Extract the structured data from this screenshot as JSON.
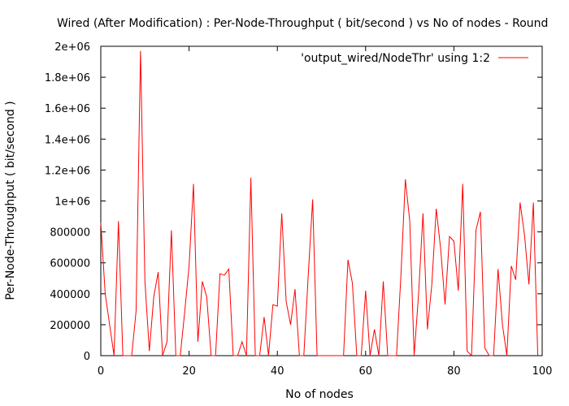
{
  "chart_data": {
    "type": "line",
    "title": "Wired (After Modification) : Per-Node-Throughput ( bit/second ) vs No of nodes - Round",
    "xlabel": "No of nodes",
    "ylabel": "Per-Node-Throughput ( bit/second )",
    "xlim": [
      0,
      100
    ],
    "ylim": [
      0,
      2000000
    ],
    "xticks": [
      0,
      20,
      40,
      60,
      80,
      100
    ],
    "xtick_labels": [
      "0",
      "20",
      "40",
      "60",
      "80",
      "100"
    ],
    "yticks": [
      0,
      200000,
      400000,
      600000,
      800000,
      1000000,
      1200000,
      1400000,
      1600000,
      1800000,
      2000000
    ],
    "ytick_labels": [
      "0",
      "200000",
      "400000",
      "600000",
      "800000",
      "1e+06",
      "1.2e+06",
      "1.4e+06",
      "1.6e+06",
      "1.8e+06",
      "2e+06"
    ],
    "grid": false,
    "legend_position": "top-right",
    "series": [
      {
        "name": "'output_wired/NodeThr' using 1:2",
        "color": "#ff0000",
        "x": [
          0,
          1,
          2,
          3,
          4,
          5,
          6,
          7,
          8,
          9,
          10,
          11,
          12,
          13,
          14,
          15,
          16,
          17,
          18,
          19,
          20,
          21,
          22,
          23,
          24,
          25,
          26,
          27,
          28,
          29,
          30,
          31,
          32,
          33,
          34,
          35,
          36,
          37,
          38,
          39,
          40,
          41,
          42,
          43,
          44,
          45,
          46,
          47,
          48,
          49,
          50,
          51,
          52,
          53,
          54,
          55,
          56,
          57,
          58,
          59,
          60,
          61,
          62,
          63,
          64,
          65,
          66,
          67,
          68,
          69,
          70,
          71,
          72,
          73,
          74,
          75,
          76,
          77,
          78,
          79,
          80,
          81,
          82,
          83,
          84,
          85,
          86,
          87,
          88,
          89,
          90,
          91,
          92,
          93,
          94,
          95,
          96,
          97,
          98,
          99
        ],
        "y": [
          860000,
          400000,
          200000,
          0,
          870000,
          0,
          0,
          0,
          290000,
          1970000,
          480000,
          30000,
          380000,
          540000,
          0,
          90000,
          810000,
          0,
          0,
          280000,
          580000,
          1110000,
          90000,
          480000,
          380000,
          0,
          0,
          530000,
          520000,
          560000,
          0,
          0,
          90000,
          0,
          1150000,
          0,
          0,
          250000,
          0,
          330000,
          320000,
          920000,
          350000,
          200000,
          430000,
          0,
          0,
          520000,
          1010000,
          0,
          0,
          0,
          0,
          0,
          0,
          0,
          620000,
          470000,
          0,
          0,
          420000,
          0,
          170000,
          0,
          480000,
          0,
          0,
          0,
          520000,
          1140000,
          870000,
          0,
          400000,
          920000,
          170000,
          460000,
          950000,
          690000,
          330000,
          770000,
          740000,
          420000,
          1110000,
          30000,
          0,
          810000,
          930000,
          50000,
          0,
          0,
          560000,
          200000,
          0,
          580000,
          490000,
          990000,
          780000,
          460000,
          990000,
          0
        ]
      }
    ]
  }
}
